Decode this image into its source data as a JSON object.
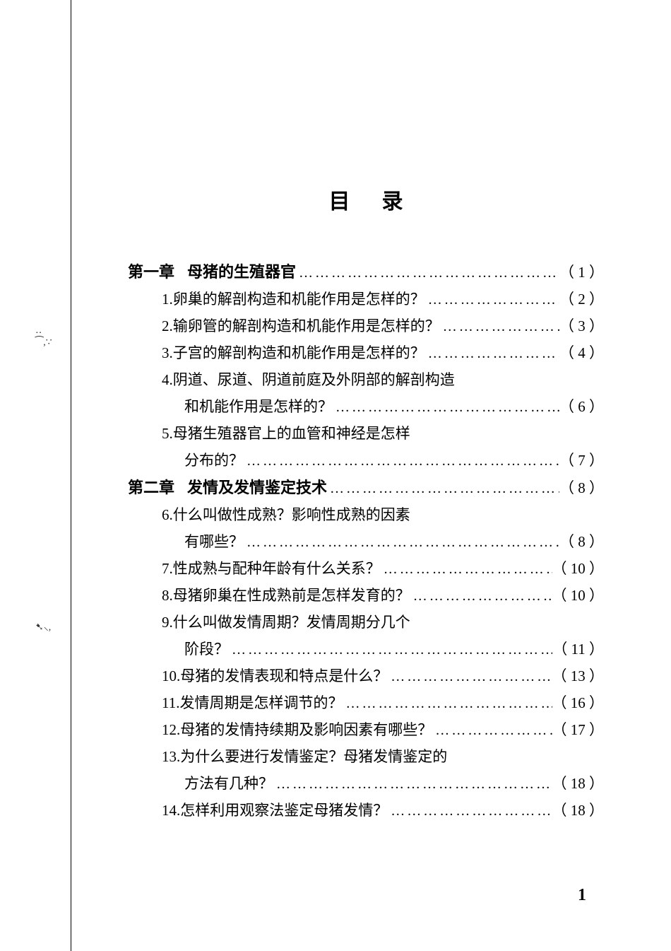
{
  "title": "目录",
  "leader_dots": "………………………………………………………………",
  "page_number": "1",
  "margin_marks_1": "‥⁀,∵",
  "margin_marks_2": "➷⸜,",
  "chapters": [
    {
      "label": "第一章",
      "title": "母猪的生殖器官",
      "page": "（ 1 ）",
      "items": [
        {
          "lines": [
            "1.卵巢的解剖构造和机能作用是怎样的？"
          ],
          "page": "（ 2 ）"
        },
        {
          "lines": [
            "2.输卵管的解剖构造和机能作用是怎样的？"
          ],
          "page": "（ 3 ）"
        },
        {
          "lines": [
            "3.子宫的解剖构造和机能作用是怎样的？"
          ],
          "page": "（ 4 ）"
        },
        {
          "lines": [
            "4.阴道、尿道、阴道前庭及外阴部的解剖构造",
            "和机能作用是怎样的？"
          ],
          "page": "（ 6 ）"
        },
        {
          "lines": [
            "5.母猪生殖器官上的血管和神经是怎样",
            "分布的？"
          ],
          "page": "（ 7 ）"
        }
      ]
    },
    {
      "label": "第二章",
      "title": "发情及发情鉴定技术",
      "page": "（ 8 ）",
      "items": [
        {
          "lines": [
            "6.什么叫做性成熟？影响性成熟的因素",
            "有哪些？"
          ],
          "page": "（ 8 ）"
        },
        {
          "lines": [
            "7.性成熟与配种年龄有什么关系？"
          ],
          "page": "（ 10 ）"
        },
        {
          "lines": [
            "8.母猪卵巢在性成熟前是怎样发育的？"
          ],
          "page": "（ 10 ）"
        },
        {
          "lines": [
            "9.什么叫做发情周期？发情周期分几个",
            "阶段？"
          ],
          "page": "（ 11 ）"
        },
        {
          "lines": [
            "10.母猪的发情表现和特点是什么？"
          ],
          "page": "（ 13 ）"
        },
        {
          "lines": [
            "11.发情周期是怎样调节的？"
          ],
          "page": "（ 16 ）"
        },
        {
          "lines": [
            "12.母猪的发情持续期及影响因素有哪些？"
          ],
          "page": "（ 17 ）"
        },
        {
          "lines": [
            "13.为什么要进行发情鉴定？母猪发情鉴定的",
            "方法有几种？"
          ],
          "page": "（ 18 ）"
        },
        {
          "lines": [
            "14.怎样利用观察法鉴定母猪发情？"
          ],
          "page": "（ 18 ）"
        }
      ]
    }
  ]
}
